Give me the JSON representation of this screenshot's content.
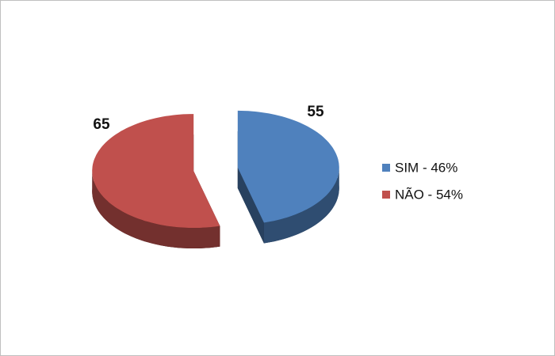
{
  "chart_data": {
    "type": "pie",
    "categories": [
      "SIM - 46%",
      "NÃO - 54%"
    ],
    "values": [
      55,
      65
    ],
    "colors": [
      "#4f81bd",
      "#c0504d"
    ],
    "legend": "right"
  }
}
